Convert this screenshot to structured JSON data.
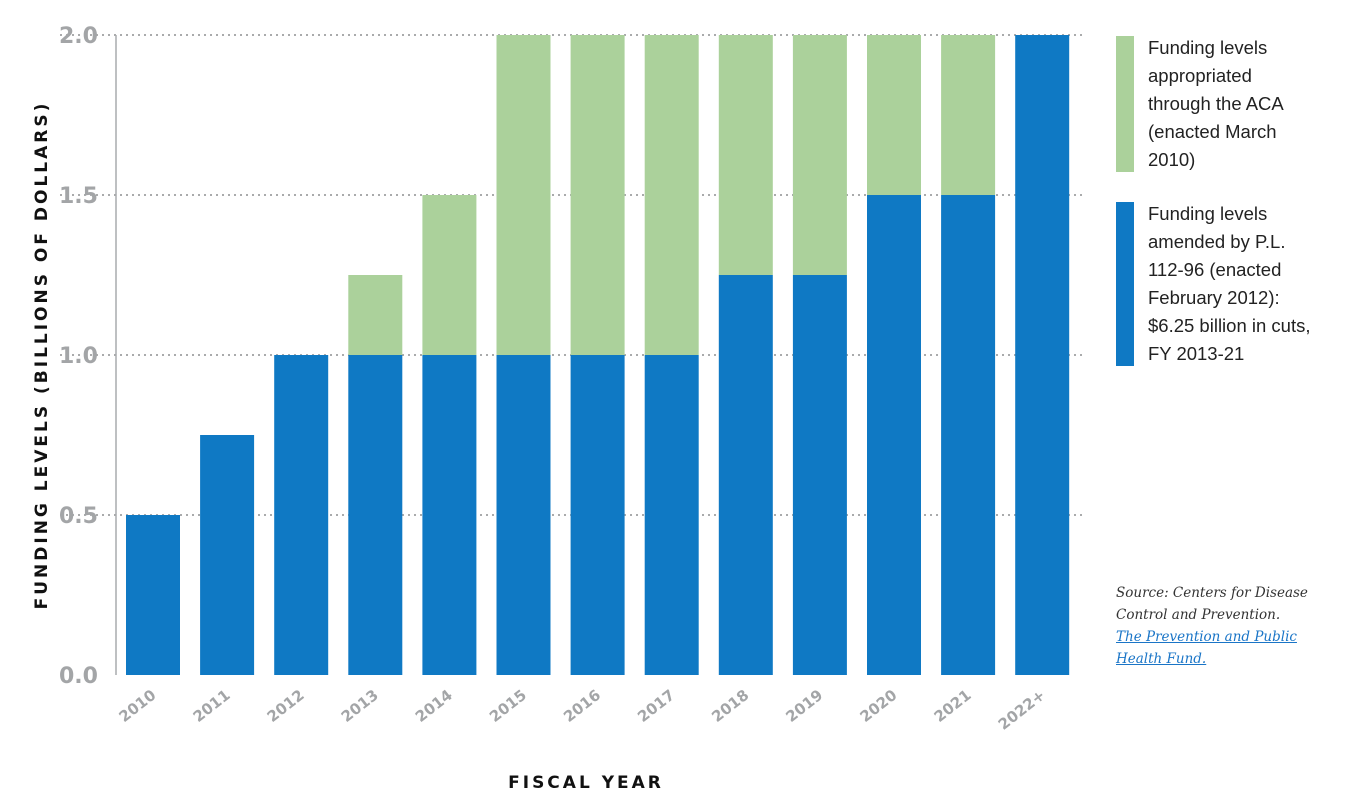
{
  "chart_data": {
    "type": "bar",
    "stacked": true,
    "categories": [
      "2010",
      "2011",
      "2012",
      "2013",
      "2014",
      "2015",
      "2016",
      "2017",
      "2018",
      "2019",
      "2020",
      "2021",
      "2022+"
    ],
    "series": [
      {
        "name": "Funding levels amended by P.L. 112-96 (enacted February 2012): $6.25 billion in cuts, FY 2013-21",
        "color": "#0f79c4",
        "values": [
          0.5,
          0.75,
          1.0,
          1.0,
          1.0,
          1.0,
          1.0,
          1.0,
          1.25,
          1.25,
          1.5,
          1.5,
          2.0
        ]
      },
      {
        "name": "Funding levels appropriated through the ACA (enacted March 2010)",
        "color": "#abd19b",
        "values": [
          0,
          0,
          0,
          0.25,
          0.5,
          1.0,
          1.0,
          1.0,
          0.75,
          0.75,
          0.5,
          0.5,
          0
        ]
      }
    ],
    "xlabel": "FISCAL YEAR",
    "ylabel": "FUNDING LEVELS (BILLIONS OF DOLLARS)",
    "ylim": [
      0,
      2.0
    ],
    "yticks": [
      "0.0",
      "0.5",
      "1.0",
      "1.5",
      "2.0"
    ],
    "grid": "dotted horizontal",
    "legend_position": "right"
  },
  "legend": [
    {
      "color": "#abd19b",
      "lines": [
        "Funding levels",
        "appropriated",
        "through the ACA",
        "(enacted March",
        "2010)"
      ]
    },
    {
      "color": "#0f79c4",
      "lines": [
        "Funding levels",
        "amended by P.L.",
        "112-96 (enacted",
        "February 2012):",
        "$6.25 billion in cuts,",
        "FY 2013-21"
      ]
    }
  ],
  "source": {
    "text_lines": [
      "Source: Centers for Disease",
      "Control and Prevention."
    ],
    "link_lines": [
      "The Prevention and Public",
      "Health Fund."
    ]
  }
}
